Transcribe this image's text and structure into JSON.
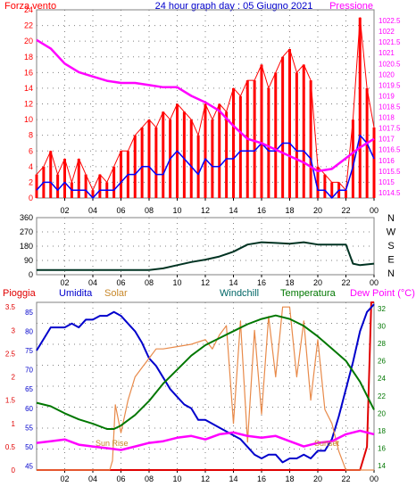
{
  "title": "24 hour graph day : 05 Giugno 2021",
  "colors": {
    "wind": "#ff0000",
    "gust_line": "#0000ff",
    "pressure": "#ff00ff",
    "direction": "#003322",
    "humidity": "#0000cc",
    "solar": "#e88a4a",
    "temperature": "#007700",
    "dewpoint": "#ff00ff",
    "rain": "#e00000",
    "windchill": "#006666",
    "grid": "#808080"
  },
  "chart_data": [
    {
      "type": "line",
      "title": "24 hour graph day : 05 Giugno 2021",
      "left_label": "Forza vento",
      "right_label": "Pressione",
      "x_ticks": [
        "02",
        "04",
        "06",
        "08",
        "10",
        "12",
        "14",
        "16",
        "18",
        "20",
        "22",
        "00"
      ],
      "x_range": [
        0,
        24
      ],
      "left_axis": {
        "ylim": [
          0,
          24
        ],
        "ticks": [
          0,
          2,
          4,
          6,
          8,
          10,
          12,
          14,
          16,
          18,
          20,
          22,
          24
        ]
      },
      "right_axis": {
        "ylim": [
          1014.25,
          1023
        ],
        "ticks": [
          "1014.5",
          "1015",
          "1015.5",
          "1016",
          "1016.5",
          "1017",
          "1017.5",
          "1018",
          "1018.5",
          "1019",
          "1019.5",
          "1020",
          "1020.5",
          "1021",
          "1021.5",
          "1022",
          "1022.5"
        ]
      },
      "series": [
        {
          "name": "Forza vento",
          "axis": "left",
          "x": [
            0,
            0.5,
            1,
            1.5,
            2,
            2.5,
            3,
            3.5,
            4,
            4.5,
            5,
            5.5,
            6,
            6.5,
            7,
            7.5,
            8,
            8.5,
            9,
            9.5,
            10,
            10.5,
            11,
            11.5,
            12,
            12.5,
            13,
            13.5,
            14,
            14.5,
            15,
            15.5,
            16,
            16.5,
            17,
            17.5,
            18,
            18.5,
            19,
            19.5,
            20,
            20.5,
            21,
            21.5,
            22,
            22.5,
            23,
            23.5,
            24
          ],
          "y": [
            3,
            4,
            6,
            3,
            5,
            2,
            5,
            3,
            1,
            3,
            2,
            4,
            6,
            6,
            8,
            9,
            10,
            9,
            11,
            10,
            12,
            11,
            10,
            8,
            12,
            10,
            12,
            11,
            14,
            13,
            15,
            15,
            17,
            14,
            16,
            18,
            19,
            16,
            17,
            15,
            4,
            3,
            2,
            2,
            1,
            10,
            23,
            14,
            9
          ]
        },
        {
          "axis": "left",
          "x": [
            0,
            0.5,
            1,
            1.5,
            2,
            2.5,
            3,
            3.5,
            4,
            4.5,
            5,
            5.5,
            6,
            6.5,
            7,
            7.5,
            8,
            8.5,
            9,
            9.5,
            10,
            10.5,
            11,
            11.5,
            12,
            12.5,
            13,
            13.5,
            14,
            14.5,
            15,
            15.5,
            16,
            16.5,
            17,
            17.5,
            18,
            18.5,
            19,
            19.5,
            20,
            20.5,
            21,
            21.5,
            22,
            22.5,
            23,
            23.5,
            24
          ],
          "y": [
            1,
            2,
            2,
            1,
            2,
            1,
            1,
            1,
            0,
            1,
            1,
            1,
            2,
            3,
            3,
            4,
            4,
            3,
            3,
            5,
            6,
            5,
            4,
            3,
            5,
            4,
            4,
            5,
            5,
            6,
            6,
            6,
            7,
            6,
            6,
            7,
            7,
            6,
            6,
            5,
            1,
            1,
            0,
            1,
            1,
            4,
            8,
            7,
            5
          ]
        },
        {
          "name": "Pressione",
          "axis": "right",
          "x": [
            0,
            1,
            2,
            3,
            4,
            5,
            6,
            7,
            8,
            9,
            10,
            11,
            12,
            13,
            14,
            15,
            16,
            17,
            18,
            19,
            20,
            21,
            22,
            23,
            24
          ],
          "y": [
            1021.6,
            1021.2,
            1020.5,
            1020.1,
            1019.9,
            1019.7,
            1019.6,
            1019.6,
            1019.5,
            1019.4,
            1019.4,
            1019.0,
            1018.7,
            1018.3,
            1017.6,
            1017.0,
            1016.8,
            1016.5,
            1016.2,
            1015.9,
            1015.5,
            1015.6,
            1016.1,
            1016.6,
            1017.0
          ]
        }
      ]
    },
    {
      "type": "line",
      "right_labels": [
        "N",
        "W",
        "S",
        "E",
        "N"
      ],
      "x_ticks": [
        "02",
        "04",
        "06",
        "08",
        "10",
        "12",
        "14",
        "16",
        "18",
        "20",
        "22",
        "00"
      ],
      "x_range": [
        0,
        24
      ],
      "ylim": [
        0,
        360
      ],
      "y_ticks": [
        0,
        90,
        180,
        270,
        360
      ],
      "series": [
        {
          "x": [
            0,
            2,
            4,
            6,
            8,
            9,
            10,
            11,
            12,
            13,
            14,
            15,
            16,
            17,
            18,
            19,
            20,
            21,
            22,
            22.5,
            23,
            24
          ],
          "y": [
            30,
            30,
            30,
            30,
            30,
            40,
            60,
            80,
            95,
            115,
            145,
            190,
            205,
            200,
            195,
            205,
            190,
            190,
            190,
            70,
            60,
            70
          ]
        }
      ]
    },
    {
      "type": "line",
      "labels": {
        "rain": "Pioggia",
        "humidity": "Umidita",
        "solar": "Solar",
        "windchill": "Windchill",
        "temperature": "Temperatura",
        "dewpoint": "Dew Point (°C)"
      },
      "annotations": [
        "Sun Rise",
        "Sunset"
      ],
      "x_ticks": [
        "02",
        "04",
        "06",
        "08",
        "10",
        "12",
        "14",
        "16",
        "18",
        "20",
        "22",
        "00"
      ],
      "x_range": [
        0,
        24
      ],
      "rain_axis": {
        "ylim": [
          0,
          3.6
        ],
        "ticks": [
          "0",
          "0.5",
          "1",
          "1.5",
          "2",
          "2.5",
          "3",
          "3.5"
        ]
      },
      "humidity_axis": {
        "ylim": [
          44,
          87.5
        ],
        "ticks": [
          45,
          50,
          55,
          60,
          65,
          70,
          75,
          80,
          85
        ]
      },
      "temp_axis": {
        "ylim": [
          13.5,
          32.7
        ],
        "ticks": [
          14,
          16,
          18,
          20,
          22,
          24,
          26,
          28,
          30,
          32
        ]
      },
      "series": [
        {
          "name": "Pioggia",
          "axis": "rain",
          "x": [
            0,
            22.8,
            23,
            23.5,
            23.8,
            24
          ],
          "y": [
            0,
            0,
            0,
            0.5,
            3.6,
            3.6
          ]
        },
        {
          "name": "Umidita",
          "axis": "humidity",
          "x": [
            0,
            0.5,
            1,
            1.5,
            2,
            2.5,
            3,
            3.5,
            4,
            4.5,
            5,
            5.5,
            6,
            6.5,
            7,
            7.5,
            8,
            8.5,
            9,
            9.5,
            10,
            10.5,
            11,
            11.5,
            12,
            12.5,
            13,
            13.5,
            14,
            14.5,
            15,
            15.5,
            16,
            16.5,
            17,
            17.5,
            18,
            18.5,
            19,
            19.5,
            20,
            20.5,
            21,
            21.5,
            22,
            22.5,
            23,
            23.5,
            24
          ],
          "y": [
            75,
            78,
            81,
            81,
            81,
            82,
            81,
            83,
            83,
            84,
            84,
            85,
            84,
            82,
            80,
            77,
            73,
            71,
            68,
            65,
            63,
            61,
            60,
            57,
            57,
            56,
            55,
            54,
            53,
            52,
            50,
            48,
            47,
            48,
            48,
            46,
            47,
            47,
            48,
            47,
            49,
            49,
            52,
            58,
            65,
            72,
            80,
            85,
            87
          ]
        },
        {
          "name": "Solar",
          "axis": "rain",
          "x": [
            0,
            5.2,
            5.4,
            5.6,
            6,
            6.5,
            7,
            7.5,
            8,
            8.5,
            9,
            10,
            11,
            12,
            12.5,
            13,
            13.5,
            14,
            14.5,
            15,
            15.5,
            16,
            16.5,
            17,
            17.5,
            18,
            18.5,
            19,
            19.5,
            20,
            20.5,
            21,
            21.5,
            22,
            24
          ],
          "y": [
            0,
            0,
            0.2,
            1.4,
            0.8,
            1.5,
            2.0,
            2.2,
            2.4,
            2.6,
            2.6,
            2.65,
            2.7,
            2.8,
            2.6,
            2.9,
            3.1,
            1.0,
            3.2,
            0.6,
            3.0,
            1.2,
            3.3,
            2.0,
            3.5,
            3.5,
            2.0,
            3.2,
            1.5,
            2.8,
            1.3,
            1.0,
            0.4,
            0,
            0
          ]
        },
        {
          "name": "Temperatura",
          "axis": "temp",
          "x": [
            0,
            1,
            2,
            3,
            4,
            5,
            5.5,
            6,
            7,
            8,
            9,
            10,
            11,
            12,
            13,
            14,
            15,
            16,
            17,
            18,
            19,
            20,
            21,
            22,
            23,
            24
          ],
          "y": [
            21.2,
            20.8,
            20.0,
            19.3,
            18.8,
            18.2,
            18.2,
            18.6,
            19.8,
            21.4,
            23.4,
            25.0,
            26.6,
            27.8,
            28.6,
            29.4,
            30.2,
            30.8,
            31.2,
            30.8,
            30.0,
            28.8,
            27.4,
            26.0,
            23.6,
            20.4
          ]
        },
        {
          "name": "Dew Point (°C)",
          "axis": "temp",
          "x": [
            0,
            1,
            2,
            3,
            4,
            5,
            6,
            7,
            8,
            9,
            10,
            11,
            12,
            13,
            14,
            15,
            16,
            17,
            18,
            19,
            20,
            21,
            22,
            23,
            24
          ],
          "y": [
            16.6,
            16.8,
            17.0,
            16.4,
            16.2,
            16.0,
            15.8,
            16.2,
            16.6,
            16.8,
            17.2,
            17.4,
            17.0,
            17.6,
            17.8,
            17.4,
            17.2,
            17.4,
            16.8,
            16.2,
            16.6,
            16.8,
            17.6,
            18.0,
            17.6
          ]
        }
      ]
    }
  ]
}
